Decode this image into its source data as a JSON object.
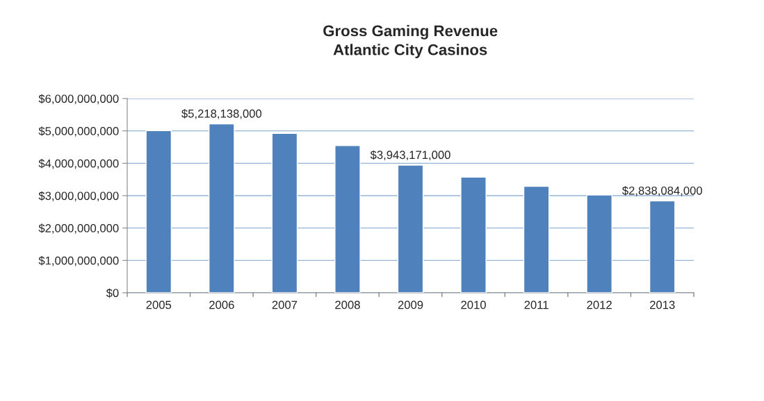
{
  "chart_data": {
    "type": "bar",
    "title": "Gross Gaming Revenue\nAtlantic City Casinos",
    "categories": [
      "2005",
      "2006",
      "2007",
      "2008",
      "2009",
      "2010",
      "2011",
      "2012",
      "2013"
    ],
    "values": [
      5010000000,
      5218138000,
      4920000000,
      4545000000,
      3943171000,
      3570000000,
      3290000000,
      3020000000,
      2838084000
    ],
    "value_labels": [
      null,
      "$5,218,138,000",
      null,
      null,
      "$3,943,171,000",
      null,
      null,
      null,
      "$2,838,084,000"
    ],
    "color": "#4f81bd",
    "ylim": [
      0,
      6000000000
    ],
    "yticks": [
      {
        "value": 0,
        "label": "$0"
      },
      {
        "value": 1000000000,
        "label": "$1,000,000,000"
      },
      {
        "value": 2000000000,
        "label": "$2,000,000,000"
      },
      {
        "value": 3000000000,
        "label": "$3,000,000,000"
      },
      {
        "value": 4000000000,
        "label": "$4,000,000,000"
      },
      {
        "value": 5000000000,
        "label": "$5,000,000,000"
      },
      {
        "value": 6000000000,
        "label": "$6,000,000,000"
      }
    ],
    "grid": "y"
  }
}
